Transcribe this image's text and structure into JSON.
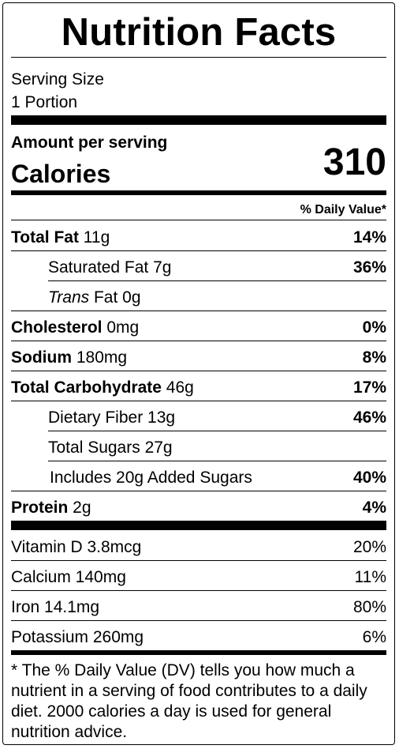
{
  "title": "Nutrition Facts",
  "serving": {
    "label": "Serving Size",
    "value": "1 Portion"
  },
  "amount_per_serving": "Amount per serving",
  "calories": {
    "label": "Calories",
    "value": "310"
  },
  "daily_value_header": "% Daily Value*",
  "nutrients": [
    {
      "name": "Total Fat",
      "amount": " 11g",
      "dv": "14%"
    },
    {
      "name": "Saturated Fat",
      "amount": " 7g",
      "dv": "36%"
    },
    {
      "name_italic": "Trans",
      "name": " Fat",
      "amount": " 0g",
      "dv": ""
    },
    {
      "name": "Cholesterol",
      "amount": " 0mg",
      "dv": "0%"
    },
    {
      "name": "Sodium",
      "amount": " 180mg",
      "dv": "8%"
    },
    {
      "name": "Total Carbohydrate",
      "amount": " 46g",
      "dv": "17%"
    },
    {
      "name": "Dietary Fiber",
      "amount": " 13g",
      "dv": "46%"
    },
    {
      "name": "Total Sugars",
      "amount": " 27g",
      "dv": ""
    },
    {
      "name": "Includes 20g Added Sugars",
      "amount": "",
      "dv": "40%"
    },
    {
      "name": "Protein",
      "amount": " 2g",
      "dv": "4%"
    }
  ],
  "vitamins": [
    {
      "label": "Vitamin D 3.8mcg",
      "dv": "20%"
    },
    {
      "label": "Calcium 140mg",
      "dv": "11%"
    },
    {
      "label": "Iron 14.1mg",
      "dv": "80%"
    },
    {
      "label": "Potassium 260mg",
      "dv": "6%"
    }
  ],
  "footnote": "* The % Daily Value (DV) tells you how much a nutrient in a serving of food contributes to a daily diet. 2000 calories a day is used for general nutrition advice."
}
